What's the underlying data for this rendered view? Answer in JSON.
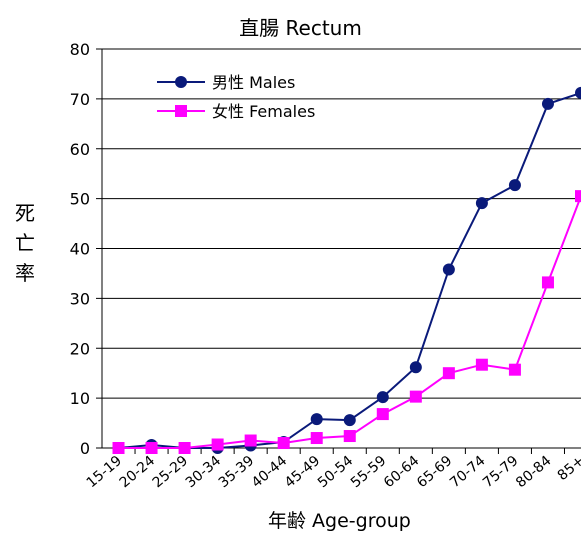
{
  "chart_data": {
    "type": "line",
    "title": "直腸 Rectum",
    "ylabel": "死亡率",
    "xlabel": "年齢 Age-group",
    "ylim": [
      0,
      80
    ],
    "yticks": [
      0,
      10,
      20,
      30,
      40,
      50,
      60,
      70,
      80
    ],
    "grid": true,
    "legend_position": "top-left",
    "categories": [
      "15-19",
      "20-24",
      "25-29",
      "30-34",
      "35-39",
      "40-44",
      "45-49",
      "50-54",
      "55-59",
      "60-64",
      "65-69",
      "70-74",
      "75-79",
      "80-84",
      "85+"
    ],
    "series": [
      {
        "name": "男性 Males",
        "color": "#0a1a7a",
        "marker": "circle",
        "values": [
          0.0,
          0.6,
          0.0,
          0.0,
          0.5,
          1.2,
          5.8,
          5.6,
          10.2,
          16.2,
          35.8,
          49.1,
          52.7,
          69.0,
          71.2
        ]
      },
      {
        "name": "女性 Females",
        "color": "#ff00ff",
        "marker": "square",
        "values": [
          0.0,
          0.0,
          0.0,
          0.7,
          1.5,
          1.0,
          2.0,
          2.4,
          6.8,
          10.3,
          15.0,
          16.7,
          15.7,
          33.2,
          50.5
        ]
      }
    ]
  }
}
